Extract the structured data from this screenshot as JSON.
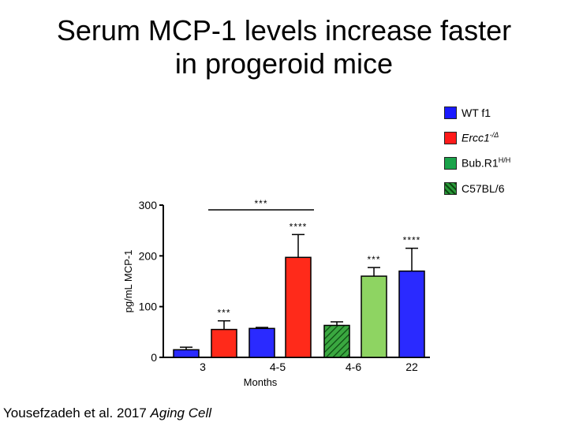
{
  "slide": {
    "title_line1": "Serum MCP-1 levels increase faster",
    "title_line2": "in progeroid mice",
    "citation_prefix": "Yousefzadeh et al. 2017 ",
    "citation_journal": "Aging Cell"
  },
  "legend": [
    {
      "label": "WT f1",
      "sup": "",
      "italic": false,
      "color": "#1a1aff",
      "pattern": "solid"
    },
    {
      "label": "Ercc1",
      "sup": "-/Δ",
      "italic": true,
      "color": "#ff1a1a",
      "pattern": "solid"
    },
    {
      "label": "Bub.R1",
      "sup": "H/H",
      "italic": false,
      "color": "#1aa34a",
      "pattern": "solid"
    },
    {
      "label": "C57BL/6",
      "sup": "",
      "italic": false,
      "color": "#2a9a3a",
      "pattern": "hatched"
    }
  ],
  "chart_data": {
    "type": "bar",
    "title": "",
    "xlabel": "Months",
    "ylabel": "pg/mL MCP-1",
    "ylim": [
      0,
      300
    ],
    "yticks": [
      0,
      100,
      200,
      300
    ],
    "grid": false,
    "legend_position": "top-right",
    "bars": [
      {
        "category": "3",
        "value": 15,
        "error": 5,
        "color": "#2a2aff",
        "pattern": "solid",
        "significance": ""
      },
      {
        "category": "3",
        "value": 55,
        "error": 17,
        "color": "#ff2a1a",
        "pattern": "solid",
        "significance": "***"
      },
      {
        "category": "4-5",
        "value": 57,
        "error": 2,
        "color": "#2a2aff",
        "pattern": "solid",
        "significance": ""
      },
      {
        "category": "4-5",
        "value": 197,
        "error": 45,
        "color": "#ff2a1a",
        "pattern": "solid",
        "significance": "****"
      },
      {
        "category": "4-6",
        "value": 63,
        "error": 7,
        "color": "#3aa840",
        "pattern": "hatched",
        "significance": ""
      },
      {
        "category": "4-6",
        "value": 160,
        "error": 17,
        "color": "#8ed462",
        "pattern": "solid",
        "significance": "***"
      },
      {
        "category": "22",
        "value": 170,
        "error": 45,
        "color": "#2a2aff",
        "pattern": "solid",
        "significance": "****"
      }
    ],
    "x_tick_labels": [
      "3",
      "4-5",
      "4-6",
      "22"
    ],
    "bracket": {
      "from_bar": 1,
      "to_bar": 3,
      "label": "***"
    }
  }
}
